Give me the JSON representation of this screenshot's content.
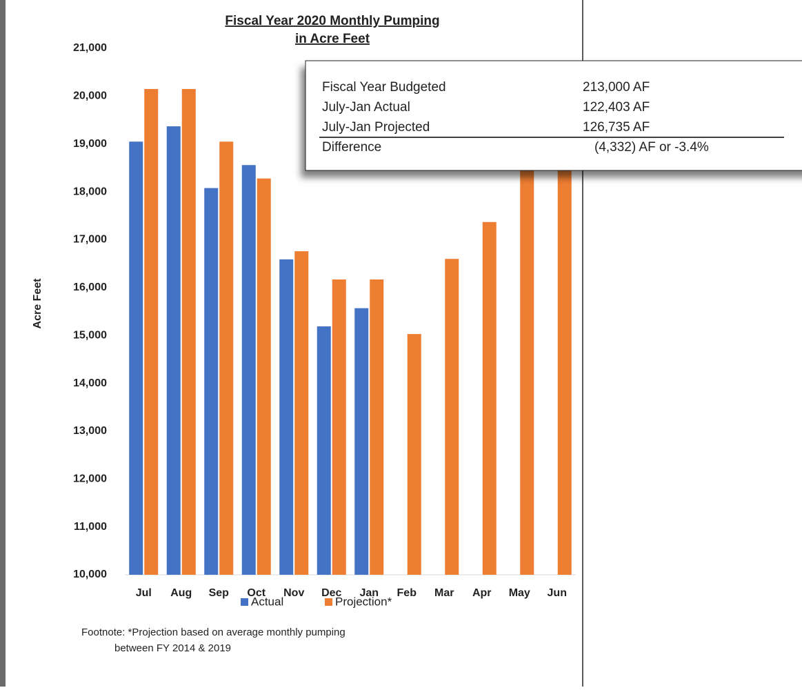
{
  "chart_data": {
    "type": "bar",
    "title": [
      "Fiscal Year 2020 Monthly Pumping",
      "in Acre Feet"
    ],
    "y_label": "Acre Feet",
    "categories": [
      "Jul",
      "Aug",
      "Sep",
      "Oct",
      "Nov",
      "Dec",
      "Jan",
      "Feb",
      "Mar",
      "Apr",
      "May",
      "Jun"
    ],
    "series": [
      {
        "name": "Actual",
        "color": "#4472c4",
        "values": [
          19050,
          19370,
          18080,
          18560,
          16590,
          15190,
          15570,
          null,
          null,
          null,
          null,
          null
        ]
      },
      {
        "name": "Projection*",
        "color": "#ed7d31",
        "values": [
          20150,
          20150,
          19050,
          18280,
          16760,
          16170,
          16170,
          15030,
          16600,
          17370,
          19500,
          19500
        ]
      }
    ],
    "ylim": [
      10000,
      21000
    ],
    "yticks": [
      {
        "value": 10000,
        "label": "10,000"
      },
      {
        "value": 11000,
        "label": "11,000"
      },
      {
        "value": 12000,
        "label": "12,000"
      },
      {
        "value": 13000,
        "label": "13,000"
      },
      {
        "value": 14000,
        "label": "14,000"
      },
      {
        "value": 15000,
        "label": "15,000"
      },
      {
        "value": 16000,
        "label": "16,000"
      },
      {
        "value": 17000,
        "label": "17,000"
      },
      {
        "value": 18000,
        "label": "18,000"
      },
      {
        "value": 19000,
        "label": "19,000"
      },
      {
        "value": 20000,
        "label": "20,000"
      },
      {
        "value": 21000,
        "label": "21,000"
      }
    ],
    "footnote": [
      "Footnote: *Projection based on average monthly pumping",
      "between FY 2014 & 2019"
    ],
    "summary": [
      {
        "label": "Fiscal Year Budgeted",
        "value": "213,000 AF"
      },
      {
        "label": "July-Jan Actual",
        "value": "122,403 AF"
      },
      {
        "label": "July-Jan Projected",
        "value": "126,735 AF"
      },
      {
        "label": "Difference",
        "value": "(4,332) AF or -3.4%"
      }
    ]
  }
}
